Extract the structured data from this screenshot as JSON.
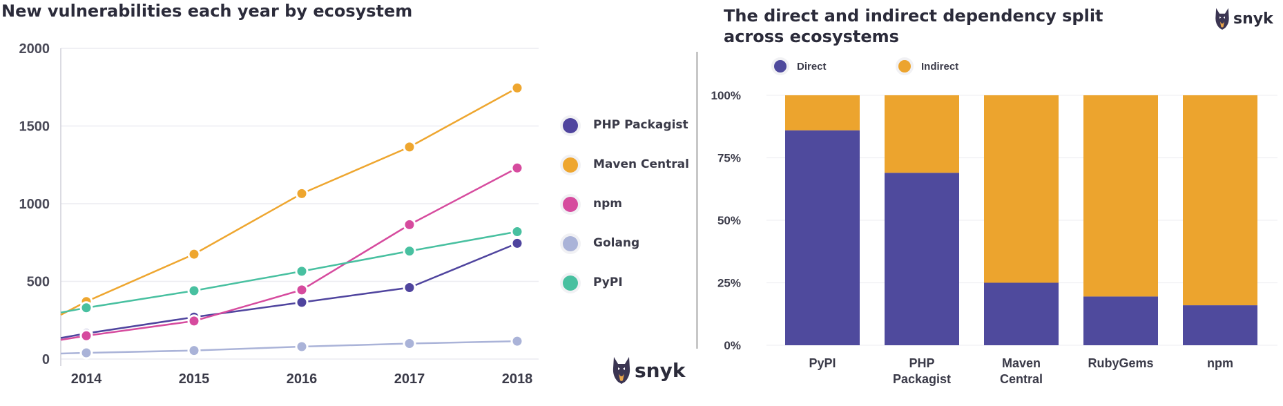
{
  "left": {
    "title": "New vulnerabilities each year by ecosystem",
    "logo_text": "snyk"
  },
  "right": {
    "title": "The direct and indirect dependency split across ecosystems",
    "logo_text": "snyk"
  },
  "colors": {
    "php": "#4f449e",
    "maven": "#eea62f",
    "npm": "#d64b9e",
    "golang": "#aab3d8",
    "pypi": "#48c0a0",
    "direct": "#4f4a9d",
    "indirect": "#eca42e"
  },
  "chart_data": [
    {
      "type": "line",
      "title": "New vulnerabilities each year by ecosystem",
      "x": [
        "2014",
        "2015",
        "2016",
        "2017",
        "2018"
      ],
      "ylim": [
        0,
        2000
      ],
      "yticks": [
        "0",
        "500",
        "1000",
        "1500",
        "2000"
      ],
      "grid": true,
      "legend": "right",
      "series": [
        {
          "name": "PHP Packagist",
          "values": [
            165,
            270,
            365,
            460,
            745
          ]
        },
        {
          "name": "Maven Central",
          "values": [
            370,
            675,
            1065,
            1365,
            1745
          ]
        },
        {
          "name": "npm",
          "values": [
            150,
            245,
            445,
            865,
            1230
          ]
        },
        {
          "name": "Golang",
          "values": [
            40,
            55,
            80,
            100,
            115
          ]
        },
        {
          "name": "PyPI",
          "values": [
            330,
            440,
            565,
            695,
            820
          ]
        }
      ]
    },
    {
      "type": "bar",
      "stacked": true,
      "title": "The direct and indirect dependency split across ecosystems",
      "categories": [
        "PyPI",
        "PHP Packagist",
        "Maven Central",
        "RubyGems",
        "npm"
      ],
      "yticks": [
        "0%",
        "25%",
        "50%",
        "75%",
        "100%"
      ],
      "ylim": [
        0,
        100
      ],
      "legend": "top",
      "series": [
        {
          "name": "Direct",
          "values": [
            86,
            69,
            25,
            19.5,
            16
          ]
        },
        {
          "name": "Indirect",
          "values": [
            14,
            31,
            75,
            80.5,
            84
          ]
        }
      ]
    }
  ]
}
